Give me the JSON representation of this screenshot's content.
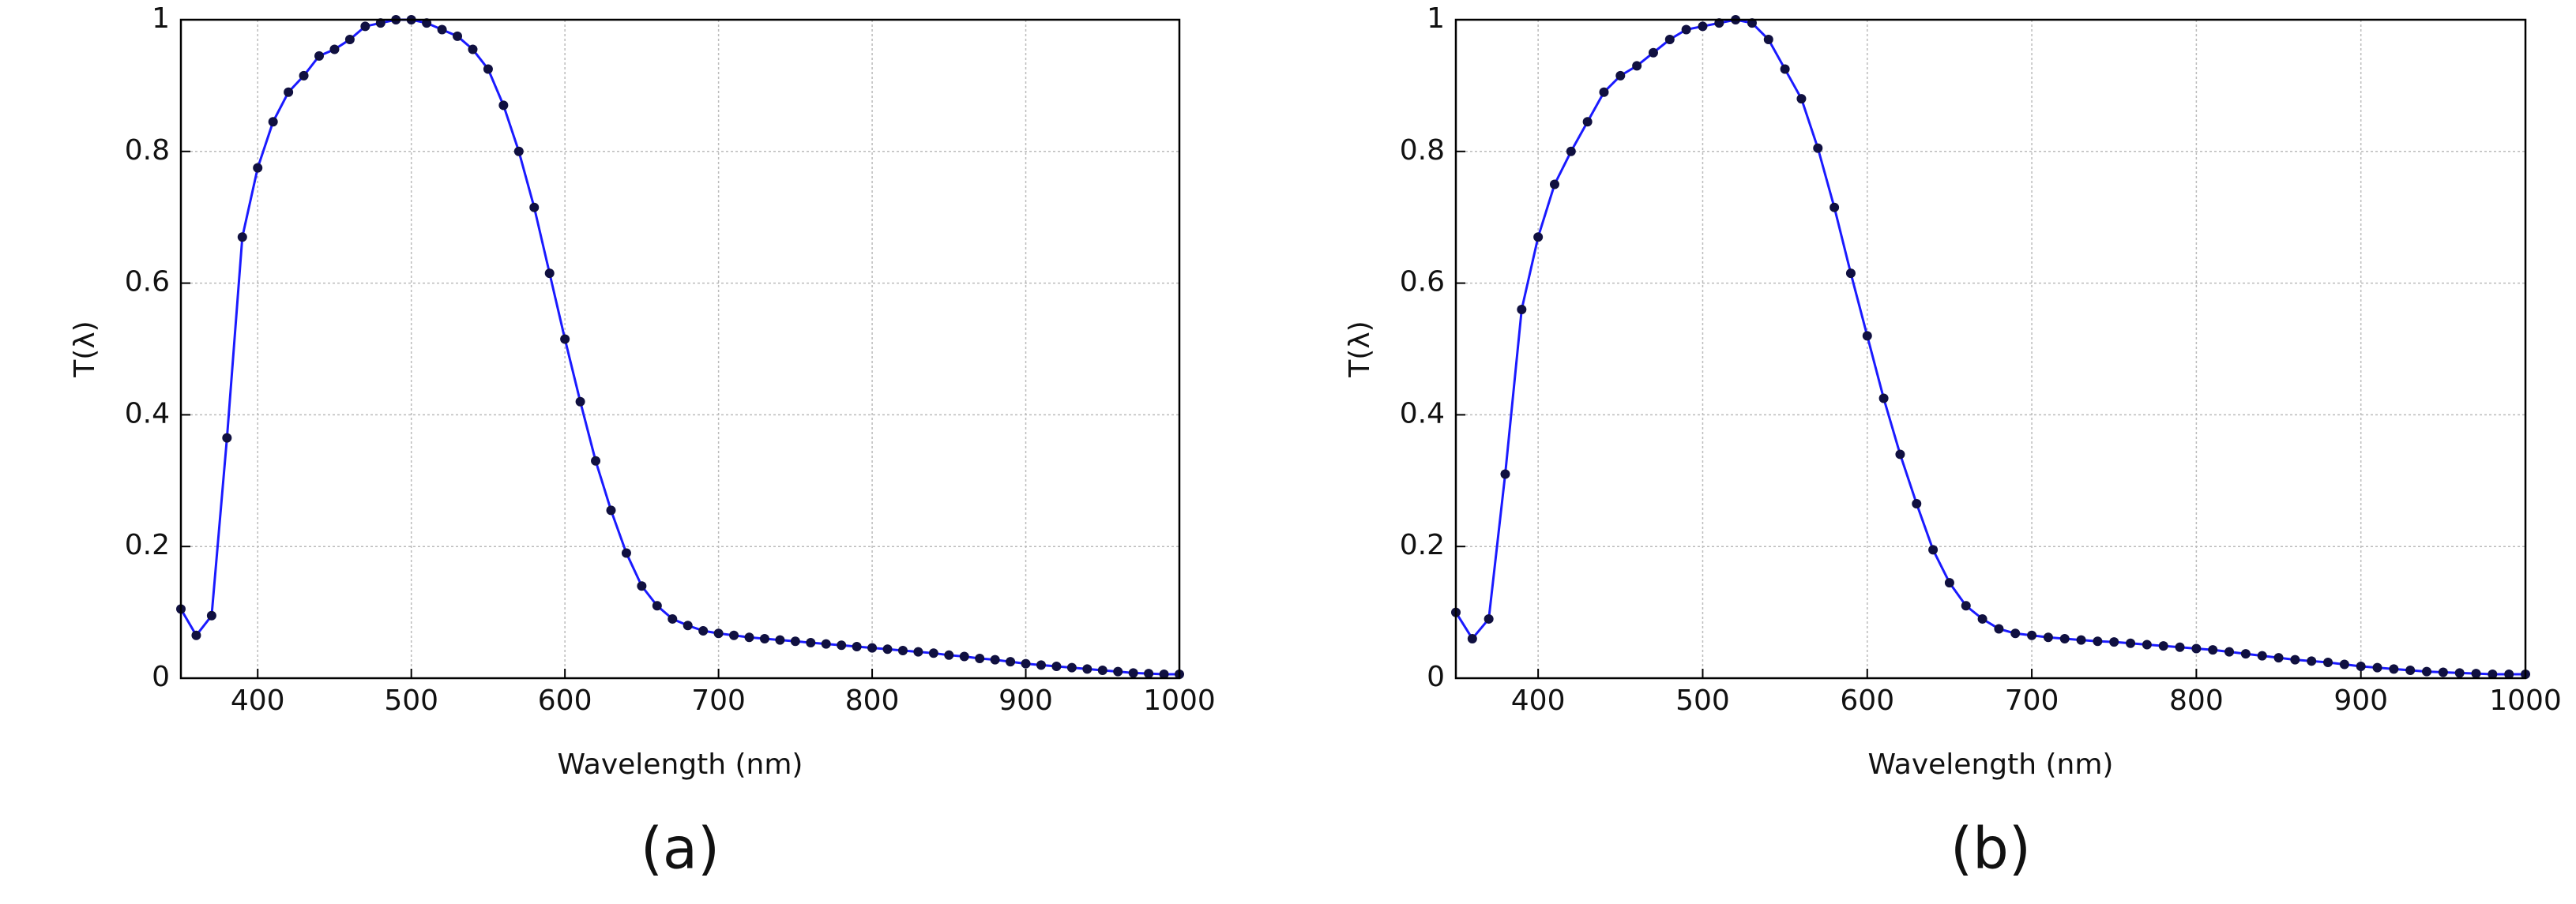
{
  "chart_data": [
    {
      "type": "line",
      "caption": "(a)",
      "xlabel": "Wavelength (nm)",
      "ylabel": "T(λ)",
      "x": [
        350,
        360,
        370,
        380,
        390,
        400,
        410,
        420,
        430,
        440,
        450,
        460,
        470,
        480,
        490,
        500,
        510,
        520,
        530,
        540,
        550,
        560,
        570,
        580,
        590,
        600,
        610,
        620,
        630,
        640,
        650,
        660,
        670,
        680,
        690,
        700,
        710,
        720,
        730,
        740,
        750,
        760,
        770,
        780,
        790,
        800,
        810,
        820,
        830,
        840,
        850,
        860,
        870,
        880,
        890,
        900,
        910,
        920,
        930,
        940,
        950,
        960,
        970,
        980,
        990,
        1000
      ],
      "series": [
        {
          "name": "T",
          "color": "#1a1aff",
          "marker_color": "#101040",
          "values": [
            0.105,
            0.065,
            0.095,
            0.365,
            0.67,
            0.775,
            0.845,
            0.89,
            0.915,
            0.945,
            0.955,
            0.97,
            0.99,
            0.995,
            1.0,
            1.0,
            0.995,
            0.985,
            0.975,
            0.955,
            0.925,
            0.87,
            0.8,
            0.715,
            0.615,
            0.515,
            0.42,
            0.33,
            0.255,
            0.19,
            0.14,
            0.11,
            0.09,
            0.08,
            0.072,
            0.068,
            0.065,
            0.062,
            0.06,
            0.058,
            0.056,
            0.054,
            0.052,
            0.05,
            0.048,
            0.046,
            0.044,
            0.042,
            0.04,
            0.038,
            0.035,
            0.033,
            0.03,
            0.028,
            0.025,
            0.022,
            0.02,
            0.018,
            0.016,
            0.014,
            0.012,
            0.01,
            0.008,
            0.007,
            0.006,
            0.006
          ]
        }
      ],
      "xlim": [
        350,
        1000
      ],
      "xticks": [
        400,
        500,
        600,
        700,
        800,
        900,
        1000
      ],
      "ylim": [
        0,
        1
      ],
      "yticks": [
        0,
        0.2,
        0.4,
        0.6,
        0.8,
        1
      ],
      "grid": true
    },
    {
      "type": "line",
      "caption": "(b)",
      "xlabel": "Wavelength (nm)",
      "ylabel": "T(λ)",
      "x": [
        350,
        360,
        370,
        380,
        390,
        400,
        410,
        420,
        430,
        440,
        450,
        460,
        470,
        480,
        490,
        500,
        510,
        520,
        530,
        540,
        550,
        560,
        570,
        580,
        590,
        600,
        610,
        620,
        630,
        640,
        650,
        660,
        670,
        680,
        690,
        700,
        710,
        720,
        730,
        740,
        750,
        760,
        770,
        780,
        790,
        800,
        810,
        820,
        830,
        840,
        850,
        860,
        870,
        880,
        890,
        900,
        910,
        920,
        930,
        940,
        950,
        960,
        970,
        980,
        990,
        1000
      ],
      "series": [
        {
          "name": "T",
          "color": "#1a1aff",
          "marker_color": "#101040",
          "values": [
            0.1,
            0.06,
            0.09,
            0.31,
            0.56,
            0.67,
            0.75,
            0.8,
            0.845,
            0.89,
            0.915,
            0.93,
            0.95,
            0.97,
            0.985,
            0.99,
            0.995,
            1.0,
            0.995,
            0.97,
            0.925,
            0.88,
            0.805,
            0.715,
            0.615,
            0.52,
            0.425,
            0.34,
            0.265,
            0.195,
            0.145,
            0.11,
            0.09,
            0.075,
            0.068,
            0.065,
            0.062,
            0.06,
            0.058,
            0.056,
            0.055,
            0.053,
            0.051,
            0.049,
            0.047,
            0.045,
            0.043,
            0.04,
            0.037,
            0.034,
            0.031,
            0.028,
            0.026,
            0.024,
            0.021,
            0.018,
            0.016,
            0.014,
            0.012,
            0.01,
            0.009,
            0.008,
            0.007,
            0.006,
            0.006,
            0.006
          ]
        }
      ],
      "xlim": [
        350,
        1000
      ],
      "xticks": [
        400,
        500,
        600,
        700,
        800,
        900,
        1000
      ],
      "ylim": [
        0,
        1
      ],
      "yticks": [
        0,
        0.2,
        0.4,
        0.6,
        0.8,
        1
      ],
      "grid": true
    }
  ]
}
